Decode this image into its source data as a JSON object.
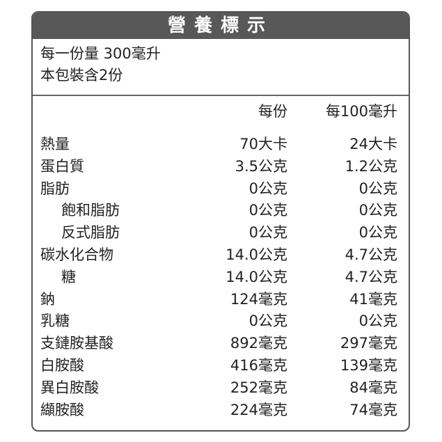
{
  "title": "營養標示",
  "serving_size": "每一份量 300毫升",
  "servings_per_pack": "本包裝含2份",
  "columns": [
    "每份",
    "每100毫升"
  ],
  "rows": [
    {
      "label": "熱量",
      "indent": false,
      "per_serving": "70大卡",
      "per_100ml": "24大卡"
    },
    {
      "label": "蛋白質",
      "indent": false,
      "per_serving": "3.5公克",
      "per_100ml": "1.2公克"
    },
    {
      "label": "脂肪",
      "indent": false,
      "per_serving": "0公克",
      "per_100ml": "0公克"
    },
    {
      "label": "飽和脂肪",
      "indent": true,
      "per_serving": "0公克",
      "per_100ml": "0公克"
    },
    {
      "label": "反式脂肪",
      "indent": true,
      "per_serving": "0公克",
      "per_100ml": "0公克"
    },
    {
      "label": "碳水化合物",
      "indent": false,
      "per_serving": "14.0公克",
      "per_100ml": "4.7公克"
    },
    {
      "label": "糖",
      "indent": true,
      "per_serving": "14.0公克",
      "per_100ml": "4.7公克"
    },
    {
      "label": "鈉",
      "indent": false,
      "per_serving": "124毫克",
      "per_100ml": "41毫克"
    },
    {
      "label": "乳糖",
      "indent": false,
      "per_serving": "0公克",
      "per_100ml": "0公克"
    },
    {
      "label": "支鏈胺基酸",
      "indent": false,
      "per_serving": "892毫克",
      "per_100ml": "297毫克"
    },
    {
      "label": "白胺酸",
      "indent": false,
      "per_serving": "416毫克",
      "per_100ml": "139毫克"
    },
    {
      "label": "異白胺酸",
      "indent": false,
      "per_serving": "252毫克",
      "per_100ml": "84毫克"
    },
    {
      "label": "纈胺酸",
      "indent": false,
      "per_serving": "224毫克",
      "per_100ml": "74毫克"
    }
  ],
  "colors": {
    "header_bg": "#585858",
    "border": "#555555"
  }
}
